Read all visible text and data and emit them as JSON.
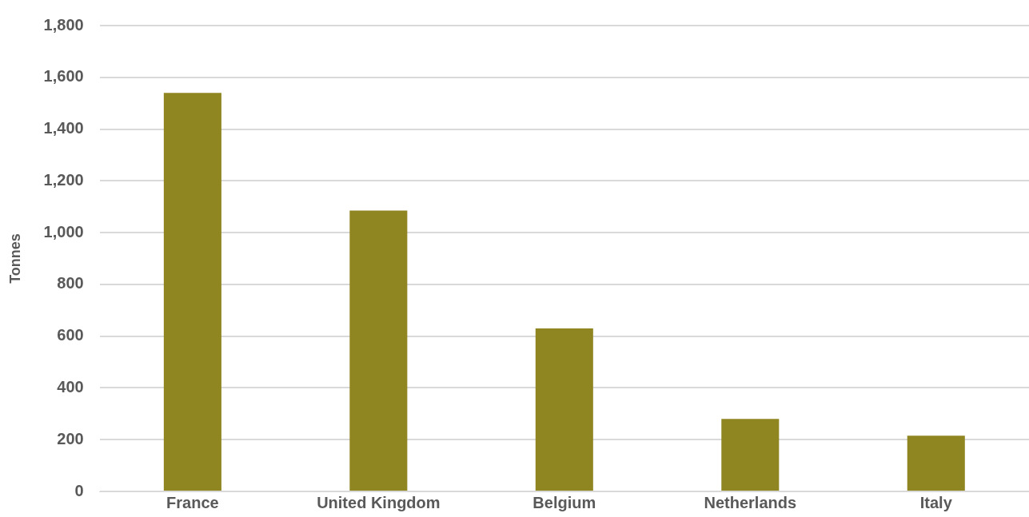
{
  "chart_data": {
    "type": "bar",
    "ylabel": "Tonnes",
    "categories": [
      "France",
      "United Kingdom",
      "Belgium",
      "Netherlands",
      "Italy"
    ],
    "values": [
      1540,
      1085,
      630,
      280,
      215
    ],
    "color": "#8f8622",
    "ylim": [
      0,
      1800
    ],
    "yticks": [
      0,
      200,
      400,
      600,
      800,
      {
        "value": 1000,
        "label": "1,000"
      },
      {
        "value": 1200,
        "label": "1,200"
      },
      {
        "value": 1400,
        "label": "1,400"
      },
      {
        "value": 1600,
        "label": "1,600"
      },
      {
        "value": 1800,
        "label": "1,800"
      }
    ],
    "grid": "y"
  }
}
